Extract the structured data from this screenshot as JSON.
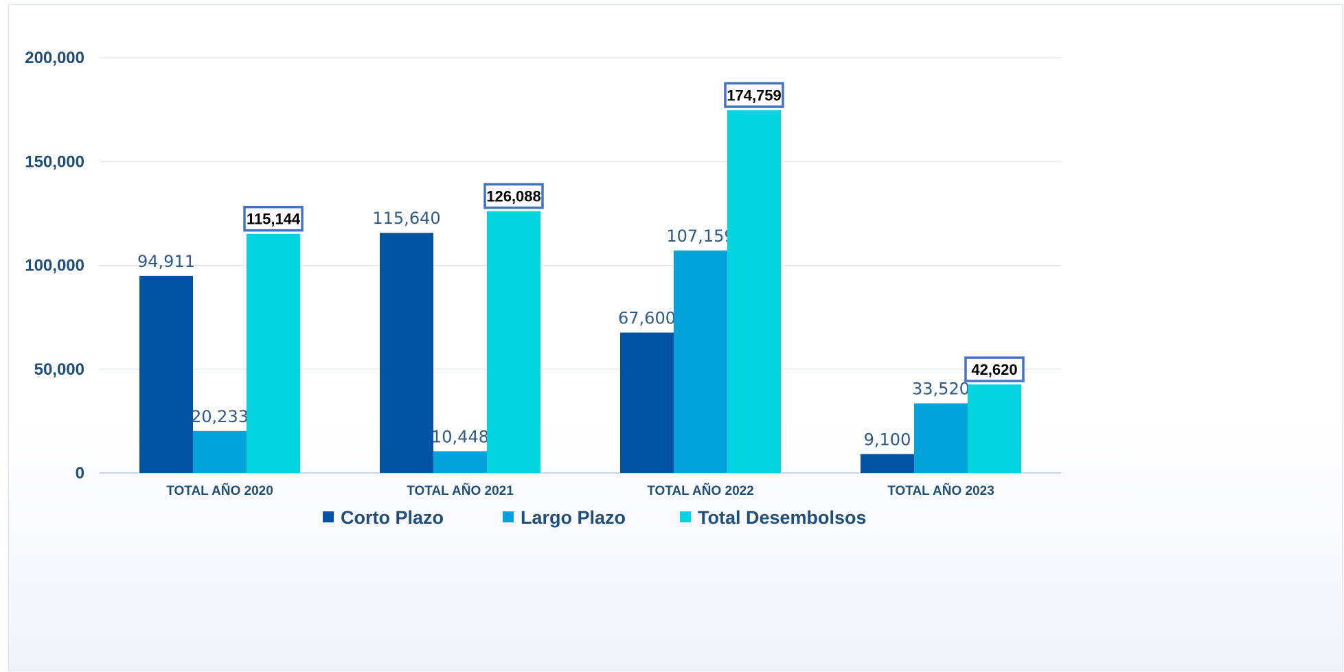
{
  "chart_data": {
    "type": "bar",
    "categories": [
      "TOTAL AÑO 2020",
      "TOTAL AÑO 2021",
      "TOTAL AÑO 2022",
      "TOTAL AÑO 2023"
    ],
    "series": [
      {
        "name": "Corto Plazo",
        "color": "#0353a4",
        "values": [
          94911,
          115640,
          67600,
          9100
        ],
        "labels": [
          "94,911",
          "115,640",
          "67,600",
          "9,100"
        ]
      },
      {
        "name": "Largo Plazo",
        "color": "#02a2db",
        "values": [
          20233,
          10448,
          107159,
          33520
        ],
        "labels": [
          "20,233",
          "10,448",
          "107,159",
          "33,520"
        ]
      },
      {
        "name": "Total Desembolsos",
        "color": "#02d5df",
        "values": [
          115144,
          126088,
          174759,
          42620
        ],
        "labels": [
          "115,144",
          "126,088",
          "174,759",
          "42,620"
        ],
        "boxed_labels": true,
        "box_color": "#4472c4"
      }
    ],
    "yticks": [
      0,
      50000,
      100000,
      150000,
      200000
    ],
    "ytick_labels": [
      "0",
      "50,000",
      "100,000",
      "150,000",
      "200,000"
    ],
    "ylim": [
      0,
      200000
    ],
    "grid": true,
    "legend_position": "bottom",
    "title": "",
    "xlabel": "",
    "ylabel": ""
  }
}
